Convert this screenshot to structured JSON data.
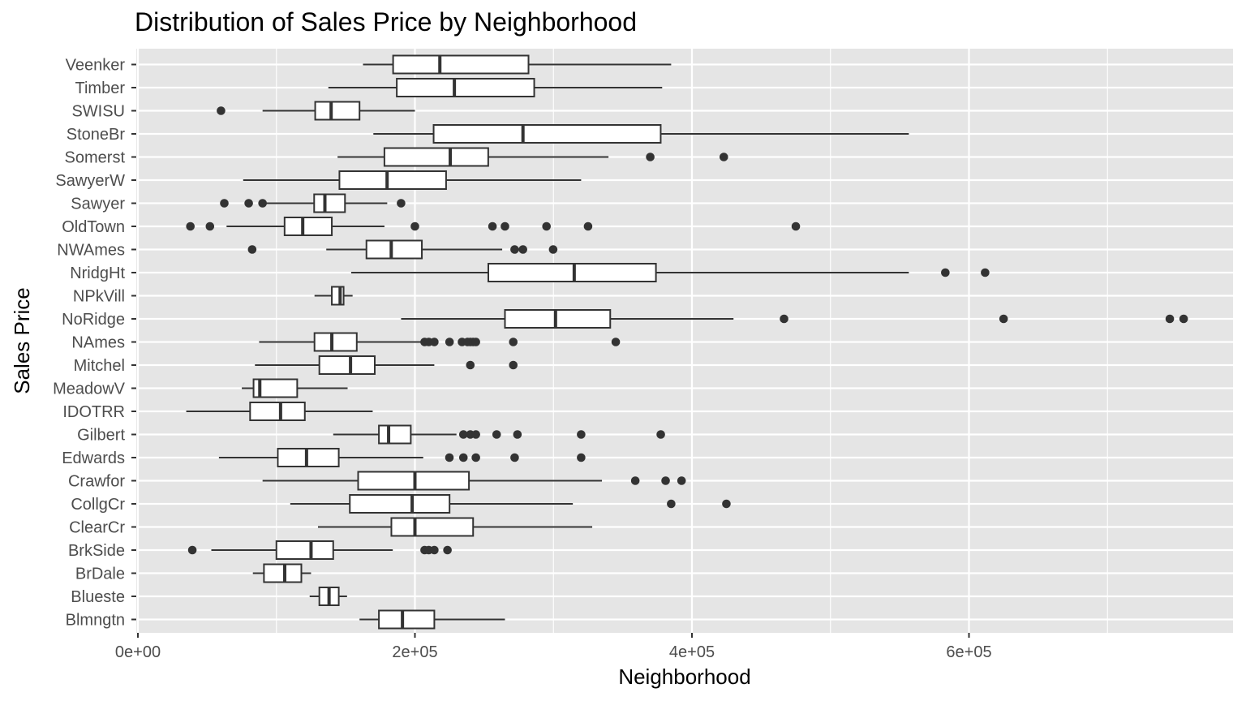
{
  "chart_data": {
    "type": "boxplot",
    "orientation": "horizontal",
    "title": "Distribution of Sales Price by Neighborhood",
    "xlabel": "Neighborhood",
    "ylabel": "Sales Price",
    "xlim": [
      0,
      790000
    ],
    "xticks": [
      0,
      200000,
      400000,
      600000
    ],
    "xtick_labels": [
      "0e+00",
      "2e+05",
      "4e+05",
      "6e+05"
    ],
    "grid": true,
    "panel_color": "#e5e5e5",
    "grid_color": "#ffffff",
    "box_color": "#333333",
    "outlier_color": "#333333",
    "categories": [
      "Blmngtn",
      "Blueste",
      "BrDale",
      "BrkSide",
      "ClearCr",
      "CollgCr",
      "Crawfor",
      "Edwards",
      "Gilbert",
      "IDOTRR",
      "MeadowV",
      "Mitchel",
      "NAmes",
      "NoRidge",
      "NPkVill",
      "NridgHt",
      "NWAmes",
      "OldTown",
      "Sawyer",
      "SawyerW",
      "Somerst",
      "StoneBr",
      "SWISU",
      "Timber",
      "Veenker"
    ],
    "boxes": [
      {
        "name": "Blmngtn",
        "whisker_low": 160000,
        "q1": 174000,
        "median": 191000,
        "q3": 214000,
        "whisker_high": 265000,
        "outliers": []
      },
      {
        "name": "Blueste",
        "whisker_low": 124000,
        "q1": 131000,
        "median": 138000,
        "q3": 145000,
        "whisker_high": 151000,
        "outliers": []
      },
      {
        "name": "BrDale",
        "whisker_low": 83000,
        "q1": 91000,
        "median": 106000,
        "q3": 118000,
        "whisker_high": 125000,
        "outliers": []
      },
      {
        "name": "BrkSide",
        "whisker_low": 53000,
        "q1": 100000,
        "median": 125000,
        "q3": 141000,
        "whisker_high": 184000,
        "outliers": [
          39300,
          207000,
          210000,
          214000,
          223500
        ]
      },
      {
        "name": "ClearCr",
        "whisker_low": 130000,
        "q1": 183000,
        "median": 200000,
        "q3": 242000,
        "whisker_high": 328000,
        "outliers": []
      },
      {
        "name": "CollgCr",
        "whisker_low": 110000,
        "q1": 153000,
        "median": 198000,
        "q3": 225000,
        "whisker_high": 314000,
        "outliers": [
          385000,
          424870
        ]
      },
      {
        "name": "Crawfor",
        "whisker_low": 90000,
        "q1": 159000,
        "median": 200000,
        "q3": 239000,
        "whisker_high": 335000,
        "outliers": [
          359100,
          381000,
          392500
        ]
      },
      {
        "name": "Edwards",
        "whisker_low": 58500,
        "q1": 101000,
        "median": 121750,
        "q3": 145000,
        "whisker_high": 206000,
        "outliers": [
          224900,
          235000,
          244000,
          272000,
          320000
        ]
      },
      {
        "name": "Gilbert",
        "whisker_low": 141000,
        "q1": 174000,
        "median": 181000,
        "q3": 197000,
        "whisker_high": 230000,
        "outliers": [
          235000,
          240000,
          244000,
          259000,
          274000,
          320000,
          377500
        ]
      },
      {
        "name": "IDOTRR",
        "whisker_low": 34900,
        "q1": 81000,
        "median": 103000,
        "q3": 120500,
        "whisker_high": 169500,
        "outliers": []
      },
      {
        "name": "MeadowV",
        "whisker_low": 75000,
        "q1": 83500,
        "median": 88000,
        "q3": 115000,
        "whisker_high": 151400,
        "outliers": []
      },
      {
        "name": "Mitchel",
        "whisker_low": 84500,
        "q1": 131000,
        "median": 153500,
        "q3": 171000,
        "whisker_high": 214000,
        "outliers": [
          240000,
          271000
        ]
      },
      {
        "name": "NAmes",
        "whisker_low": 87500,
        "q1": 127500,
        "median": 140000,
        "q3": 158000,
        "whisker_high": 215000,
        "outliers": [
          207000,
          210000,
          214000,
          225000,
          234000,
          238000,
          240000,
          242000,
          244000,
          271000,
          345000
        ]
      },
      {
        "name": "NoRidge",
        "whisker_low": 190000,
        "q1": 265000,
        "median": 301500,
        "q3": 341000,
        "whisker_high": 430000,
        "outliers": [
          466500,
          625000,
          745000,
          755000
        ]
      },
      {
        "name": "NPkVill",
        "whisker_low": 127500,
        "q1": 140000,
        "median": 146000,
        "q3": 148500,
        "whisker_high": 155000,
        "outliers": []
      },
      {
        "name": "NridgHt",
        "whisker_low": 154000,
        "q1": 253000,
        "median": 315000,
        "q3": 374000,
        "whisker_high": 556581,
        "outliers": [
          582933,
          611657
        ]
      },
      {
        "name": "NWAmes",
        "whisker_low": 136000,
        "q1": 165000,
        "median": 182900,
        "q3": 205000,
        "whisker_high": 263000,
        "outliers": [
          82500,
          272000,
          278000,
          299800
        ]
      },
      {
        "name": "OldTown",
        "whisker_low": 64000,
        "q1": 105900,
        "median": 119000,
        "q3": 140000,
        "whisker_high": 178000,
        "outliers": [
          37900,
          52000,
          200000,
          256000,
          265000,
          295000,
          325000,
          475000
        ]
      },
      {
        "name": "Sawyer",
        "whisker_low": 92000,
        "q1": 127250,
        "median": 135000,
        "q3": 149500,
        "whisker_high": 180000,
        "outliers": [
          62383,
          80000,
          90000,
          190000
        ]
      },
      {
        "name": "SawyerW",
        "whisker_low": 76000,
        "q1": 145500,
        "median": 179900,
        "q3": 222500,
        "whisker_high": 320000,
        "outliers": []
      },
      {
        "name": "Somerst",
        "whisker_low": 144152,
        "q1": 177975,
        "median": 225500,
        "q3": 252919,
        "whisker_high": 339750,
        "outliers": [
          369900,
          423000
        ]
      },
      {
        "name": "StoneBr",
        "whisker_low": 170000,
        "q1": 213500,
        "median": 278000,
        "q3": 377426,
        "whisker_high": 556581,
        "outliers": []
      },
      {
        "name": "SWISU",
        "whisker_low": 90000,
        "q1": 128000,
        "median": 139500,
        "q3": 160000,
        "whisker_high": 200000,
        "outliers": [
          60000
        ]
      },
      {
        "name": "Timber",
        "whisker_low": 137500,
        "q1": 186900,
        "median": 228475,
        "q3": 286115,
        "whisker_high": 378500,
        "outliers": []
      },
      {
        "name": "Veenker",
        "whisker_low": 162500,
        "q1": 184250,
        "median": 218000,
        "q3": 282000,
        "whisker_high": 385000,
        "outliers": []
      }
    ]
  }
}
